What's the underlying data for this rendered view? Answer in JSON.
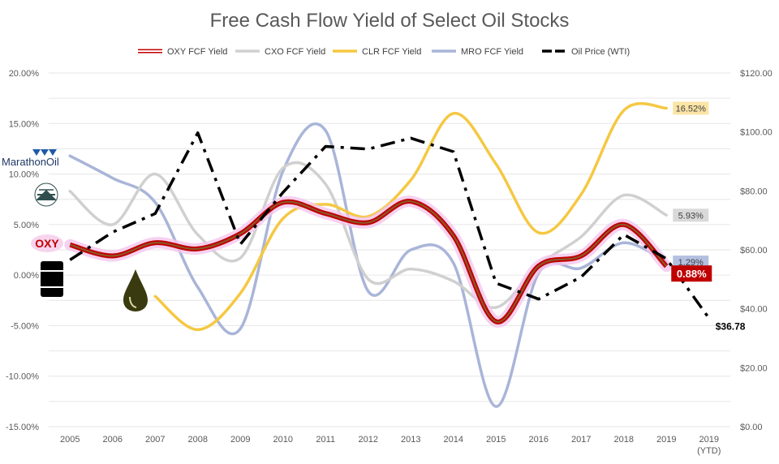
{
  "chart_data": {
    "type": "line",
    "title": "Free Cash Flow Yield of Select Oil Stocks",
    "categories": [
      "2005",
      "2006",
      "2007",
      "2008",
      "2009",
      "2010",
      "2011",
      "2012",
      "2013",
      "2014",
      "2015",
      "2016",
      "2017",
      "2018",
      "2019",
      "2019"
    ],
    "category_sublabels": [
      "",
      "",
      "",
      "",
      "",
      "",
      "",
      "",
      "",
      "",
      "",
      "",
      "",
      "",
      "",
      "(YTD)"
    ],
    "left_axis": {
      "min": -15,
      "max": 20,
      "step": 5,
      "tick_labels": [
        "-15.00%",
        "-10.00%",
        "-5.00%",
        "0.00%",
        "5.00%",
        "10.00%",
        "15.00%",
        "20.00%"
      ]
    },
    "right_axis": {
      "min": 0,
      "max": 120,
      "step": 20,
      "tick_labels": [
        "$0.00",
        "$20.00",
        "$40.00",
        "$60.00",
        "$80.00",
        "$100.00",
        "$120.00"
      ]
    },
    "series": [
      {
        "name": "OXY FCF Yield",
        "axis": "left",
        "color": "#c00000",
        "values": [
          3.0,
          1.9,
          3.2,
          2.6,
          4.1,
          7.2,
          6.1,
          5.2,
          7.3,
          3.9,
          -4.6,
          0.9,
          1.9,
          5.0,
          0.88,
          null
        ]
      },
      {
        "name": "CXO FCF Yield",
        "axis": "left",
        "color": "#d0d0d0",
        "values": [
          8.3,
          5.0,
          10.0,
          4.0,
          1.7,
          10.6,
          9.0,
          -0.4,
          0.6,
          -0.6,
          -3.2,
          1.0,
          3.8,
          7.9,
          5.93,
          null
        ]
      },
      {
        "name": "CLR FCF Yield",
        "axis": "left",
        "color": "#f5c842",
        "values": [
          null,
          null,
          -2.1,
          -5.4,
          -1.8,
          5.6,
          7.0,
          5.8,
          9.4,
          16.0,
          11.0,
          4.2,
          8.0,
          16.3,
          16.52,
          null
        ]
      },
      {
        "name": "MRO FCF Yield",
        "axis": "left",
        "color": "#a9b5d8",
        "values": [
          11.8,
          9.6,
          7.2,
          -1.2,
          -5.3,
          10.3,
          14.3,
          -1.6,
          2.5,
          1.2,
          -13.0,
          0.2,
          0.7,
          3.2,
          1.29,
          null
        ]
      },
      {
        "name": "Oil Price (WTI)",
        "axis": "right",
        "color": "#000000",
        "values": [
          56.6,
          66.0,
          72.3,
          99.7,
          61.9,
          79.5,
          95.1,
          94.2,
          97.9,
          93.3,
          48.7,
          43.3,
          50.8,
          65.2,
          57.0,
          36.78
        ]
      }
    ],
    "data_labels": [
      {
        "series": "CLR FCF Yield",
        "text": "16.52%",
        "bg": "#fbe4a6",
        "fg": "#404040"
      },
      {
        "series": "CXO FCF Yield",
        "text": "5.93%",
        "bg": "#d9d9d9",
        "fg": "#404040"
      },
      {
        "series": "MRO FCF Yield",
        "text": "1.29%",
        "bg": "#b4c0e0",
        "fg": "#404040"
      },
      {
        "series": "OXY FCF Yield",
        "text": "0.88%",
        "bg": "#c00000",
        "fg": "#ffffff"
      },
      {
        "series": "Oil Price (WTI)",
        "text": "$36.78",
        "bg": "none",
        "fg": "#000000"
      }
    ],
    "legend_position": "top"
  },
  "logos": {
    "marathon": "MarathonOil",
    "oxy": "OXY"
  }
}
